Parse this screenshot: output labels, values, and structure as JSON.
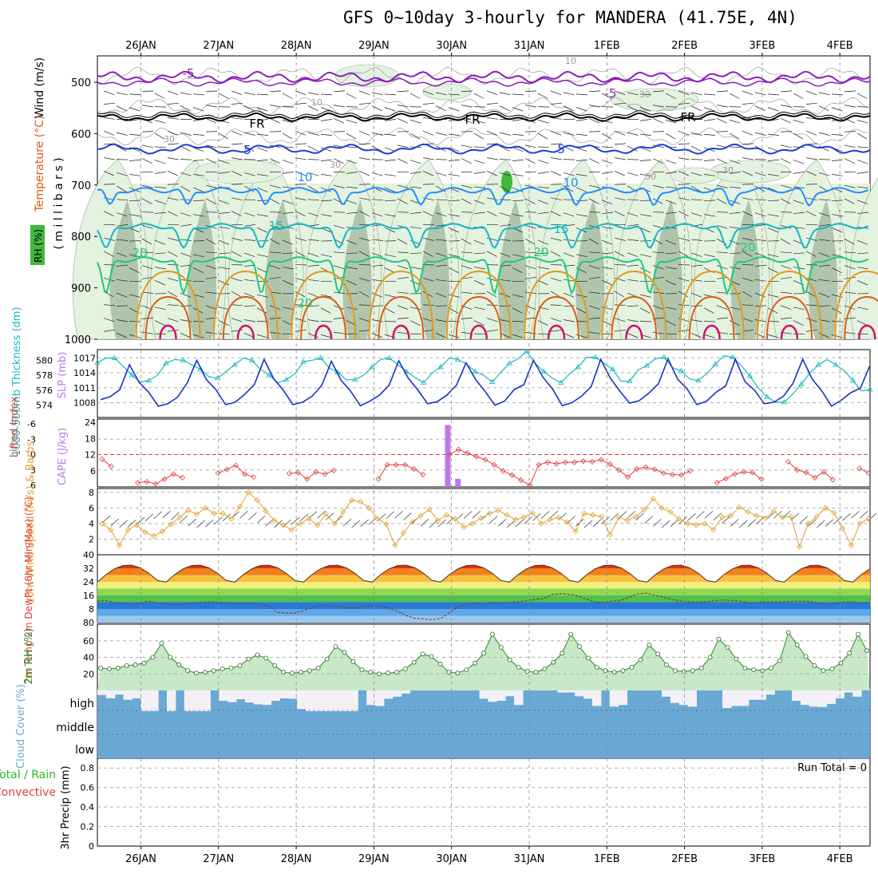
{
  "title": "GFS 0~10day 3-hourly for MANDERA (41.75E, 4N)",
  "days": [
    "26JAN",
    "27JAN",
    "28JAN",
    "29JAN",
    "30JAN",
    "31JAN",
    "1FEB",
    "2FEB",
    "3FEB",
    "4FEB"
  ],
  "colors": {
    "purple": "#8a1fb5",
    "black": "#000000",
    "blue": "#1a3fd6",
    "skyblue": "#1e90ff",
    "cyan": "#10b8c8",
    "green": "#1fc87a",
    "orange": "#e39a1e",
    "orangered": "#e05a10",
    "magenta": "#d0106a",
    "rh_light": "#e4f2e0",
    "rh_mid": "#9fb59b",
    "rh_dark": "#3fb83f",
    "slp": "#1833c8",
    "thick": "#18b8c0",
    "li": "#e04040",
    "cape": "#c078e8",
    "wind10": "#e0a030",
    "cloud": "#6aa9d4",
    "rhfill": "#c8e8c8"
  },
  "chart_data": [
    {
      "type": "contour",
      "name": "upper-air",
      "ylabel_main": "Wind (m/s)",
      "ylabel_t": "Temperature (°C)",
      "ylabel_rh": "RH (%)",
      "ylabel_p": "( m i l l i b a r s )",
      "y_ticks": [
        "500",
        "600",
        "700",
        "800",
        "900",
        "1000"
      ],
      "contour_labels": [
        {
          "text": "-5",
          "c": "purple",
          "series": "t-5"
        },
        {
          "text": "-5",
          "c": "purple",
          "series": "t-5b"
        },
        {
          "text": "FR",
          "c": "black",
          "series": "fr"
        },
        {
          "text": "FR",
          "c": "black",
          "series": "fr"
        },
        {
          "text": "FR",
          "c": "black",
          "series": "fr"
        },
        {
          "text": "5",
          "c": "blue",
          "series": "t5"
        },
        {
          "text": "5",
          "c": "blue",
          "series": "t5"
        },
        {
          "text": "10",
          "c": "skyblue",
          "series": "t10"
        },
        {
          "text": "10",
          "c": "skyblue",
          "series": "t10"
        },
        {
          "text": "15",
          "c": "cyan",
          "series": "t15"
        },
        {
          "text": "15",
          "c": "cyan",
          "series": "t15"
        },
        {
          "text": "20",
          "c": "green",
          "series": "t20"
        },
        {
          "text": "20",
          "c": "green",
          "series": "t20"
        },
        {
          "text": "20",
          "c": "green",
          "series": "t20"
        },
        {
          "text": "20",
          "c": "green",
          "series": "t20"
        },
        {
          "text": "10",
          "c": "grey",
          "series": "rh"
        },
        {
          "text": "10",
          "c": "grey",
          "series": "rh"
        },
        {
          "text": "30",
          "c": "grey",
          "series": "rh"
        },
        {
          "text": "30",
          "c": "grey",
          "series": "rh"
        },
        {
          "text": "30",
          "c": "grey",
          "series": "rh"
        },
        {
          "text": "30",
          "c": "grey",
          "series": "rh"
        },
        {
          "text": "50",
          "c": "grey",
          "series": "rh"
        }
      ]
    },
    {
      "type": "line",
      "name": "slp-thickness",
      "ylabel_left": "1000-500mb Thickness (dm)",
      "ylabel_right": "SLP (mb)",
      "left_ticks": [
        "580",
        "578",
        "576",
        "574"
      ],
      "right_ticks": [
        "1017",
        "1014",
        "1011",
        "1008"
      ],
      "left_range": [
        573,
        581
      ],
      "right_range": [
        1006,
        1018
      ],
      "slp": [
        1008.6,
        1009.2,
        1010.6,
        1015.6,
        1012.1,
        1010.1,
        1007.3,
        1007.8,
        1009.1,
        1011.9,
        1016.5,
        1012.6,
        1010.6,
        1007.6,
        1008.1,
        1009.7,
        1011.7,
        1016.7,
        1012.8,
        1010.5,
        1007.6,
        1008.1,
        1009.3,
        1011.5,
        1016.3,
        1012.5,
        1010.3,
        1007.4,
        1008.3,
        1009.5,
        1011.5,
        1016.4,
        1012.9,
        1010.5,
        1007.8,
        1008.2,
        1009.5,
        1011.5,
        1016.0,
        1012.6,
        1010.2,
        1007.5,
        1008.3,
        1010.6,
        1011.6,
        1016.5,
        1013.1,
        1010.7,
        1007.4,
        1008.0,
        1009.3,
        1011.2,
        1016.7,
        1012.9,
        1010.3,
        1007.9,
        1008.4,
        1009.9,
        1011.8,
        1016.8,
        1012.7,
        1010.7,
        1007.6,
        1008.3,
        1010.1,
        1011.4,
        1016.7,
        1012.2,
        1010.5,
        1007.8,
        1008.1,
        1009.3,
        1011.9,
        1016.7,
        1012.7,
        1010.3,
        1007.3,
        1008.5,
        1010.0,
        1010.9,
        1015.5
      ],
      "thick": [
        579.7,
        580.3,
        580.3,
        579.2,
        578.0,
        577.1,
        577.3,
        578.0,
        579.6,
        580.1,
        580.0,
        579.4,
        578.8,
        577.8,
        577.6,
        578.5,
        579.4,
        580.3,
        580.0,
        578.8,
        578.0,
        577.0,
        577.4,
        578.2,
        579.8,
        580.0,
        580.3,
        579.0,
        578.4,
        577.4,
        577.4,
        578.0,
        579.1,
        580.1,
        580.3,
        579.4,
        578.5,
        577.7,
        577.0,
        578.3,
        579.1,
        580.3,
        580.1,
        579.5,
        578.5,
        578.0,
        577.1,
        578.4,
        579.6,
        580.2,
        581.2,
        579.6,
        578.5,
        577.6,
        577.0,
        578.2,
        579.1,
        580.4,
        580.4,
        579.6,
        578.8,
        577.2,
        577.2,
        578.7,
        579.3,
        580.2,
        580.4,
        579.0,
        578.6,
        577.5,
        577.3,
        578.2,
        579.5,
        580.6,
        580.4,
        579.3,
        577.9,
        576.3,
        575.1,
        574.4,
        574.4,
        575.5,
        576.8,
        578.3,
        579.4,
        580.1,
        579.4,
        578.6,
        577.3,
        575.9,
        576.1
      ]
    },
    {
      "type": "bar",
      "name": "lifted-cape",
      "ylabel_li": "Lifted Index",
      "ylabel_cape": "CAPE (J/kg)",
      "li_ticks": [
        "-6",
        "-3",
        "0",
        "3",
        "6"
      ],
      "cape_ticks": [
        "24",
        "18",
        "12",
        "6"
      ],
      "li_range": [
        -6,
        6
      ],
      "cape_range": [
        0,
        24
      ],
      "li": [
        0.9,
        2.3,
        null,
        null,
        5.5,
        5.3,
        5.7,
        4.8,
        3.8,
        4.5,
        null,
        null,
        null,
        3.6,
        2.9,
        2.1,
        3.8,
        4.4,
        null,
        null,
        null,
        3.7,
        3.5,
        4.8,
        3.4,
        3.8,
        3.1,
        null,
        null,
        null,
        null,
        4.8,
        2.0,
        2.0,
        2.0,
        2.8,
        3.9,
        null,
        null,
        0.0,
        -1.0,
        -0.3,
        0.4,
        1.0,
        2.0,
        3.2,
        4.0,
        5.0,
        6.0,
        2.0,
        1.5,
        1.8,
        1.5,
        1.5,
        1.3,
        1.4,
        1.0,
        1.9,
        3.0,
        4.4,
        2.8,
        2.5,
        2.9,
        3.6,
        3.9,
        4.0,
        3.2,
        null,
        null,
        5.5,
        4.7,
        3.8,
        3.4,
        3.5,
        4.8,
        null,
        null,
        1.4,
        3.0,
        3.5,
        4.5,
        3.4,
        4.9,
        null,
        null,
        2.7,
        3.6
      ],
      "cape_bars": [
        {
          "day": 4.12,
          "v": 23
        },
        {
          "day": 4.25,
          "v": 3
        }
      ]
    },
    {
      "type": "line",
      "name": "wind10m",
      "ylabel": "10m Wind Speed (m/s) & Barbs",
      "ticks": [
        "8",
        "6",
        "4",
        "2"
      ],
      "range": [
        0,
        8.5
      ],
      "speed": [
        4.0,
        3.2,
        1.2,
        3.2,
        3.8,
        2.9,
        2.4,
        3.0,
        3.9,
        4.8,
        5.7,
        5.2,
        6.0,
        5.3,
        5.3,
        4.6,
        6.2,
        8.0,
        7.0,
        5.6,
        4.4,
        3.8,
        3.2,
        4.0,
        4.6,
        3.8,
        5.2,
        4.0,
        5.5,
        7.0,
        6.8,
        6.0,
        4.6,
        3.9,
        1.2,
        2.8,
        4.2,
        5.0,
        5.8,
        4.4,
        5.1,
        4.6,
        3.5,
        4.0,
        4.7,
        5.3,
        5.7,
        5.1,
        4.5,
        4.8,
        5.4,
        4.0,
        4.5,
        4.8,
        4.2,
        3.0,
        5.3,
        5.1,
        4.9,
        2.6,
        4.8,
        4.4,
        4.9,
        5.8,
        7.2,
        6.0,
        5.5,
        4.6,
        4.0,
        3.8,
        4.0,
        3.2,
        4.8,
        5.0,
        6.1,
        5.5,
        5.0,
        4.7,
        5.6,
        4.8,
        4.9,
        1.0,
        4.0,
        4.9,
        6.0,
        5.4,
        3.4,
        1.2,
        4.0,
        4.6
      ]
    },
    {
      "type": "area",
      "name": "temp2m",
      "ylabel": "2m Temp 2m DewPt (6hr Min/Max) (°C)",
      "ticks": [
        "40",
        "32",
        "24",
        "16",
        "8",
        "80"
      ],
      "range": [
        0,
        40
      ],
      "temp_min": 22,
      "temp_max": 34,
      "dew": [
        12.6,
        13.0,
        11.7,
        11.2,
        10.8,
        11.5,
        12.6,
        11.6,
        11.4,
        10.5,
        11.1,
        11.6,
        11.8,
        12.1,
        12.0,
        11.6,
        11.4,
        11.5,
        11.3,
        10.8,
        9.7,
        6.0,
        5.6,
        5.6,
        7.0,
        9.0,
        10.3,
        9.7,
        9.4,
        8.7,
        8.5,
        9.8,
        9.9,
        9.7,
        8.2,
        6.7,
        4.1,
        2.5,
        2.2,
        1.7,
        2.5,
        5.7,
        9.2,
        10.8,
        11.2,
        10.9,
        11.9,
        11.7,
        11.9,
        12.3,
        12.9,
        13.8,
        14.1,
        16.5,
        17.0,
        16.6,
        15.7,
        13.7,
        12.1,
        11.8,
        12.6,
        13.1,
        15.1,
        17.0,
        17.3,
        16.0,
        15.0,
        13.5,
        12.6,
        12.1,
        12.0,
        12.3,
        12.9,
        13.3,
        12.9,
        12.6,
        11.5,
        12.0,
        12.2,
        12.2,
        12.1,
        12.5,
        12.6,
        12.3,
        11.4,
        10.8,
        11.3,
        12.0,
        12.1,
        11.6,
        11.6
      ]
    },
    {
      "type": "area",
      "name": "rh2m",
      "ylabel": "2m RH (%)",
      "ticks": [
        "60",
        "40",
        "20"
      ],
      "range": [
        0,
        80
      ],
      "rh": [
        27,
        26,
        27,
        30,
        31,
        33,
        40,
        57,
        40,
        31,
        24,
        21,
        22,
        24,
        26,
        27,
        30,
        38,
        43,
        39,
        30,
        22,
        21,
        22,
        24,
        27,
        38,
        53,
        46,
        35,
        25,
        22,
        20,
        21,
        22,
        26,
        34,
        44,
        41,
        32,
        22,
        21,
        25,
        33,
        45,
        68,
        52,
        37,
        28,
        23,
        22,
        26,
        34,
        45,
        68,
        53,
        39,
        28,
        24,
        22,
        24,
        28,
        37,
        55,
        44,
        31,
        24,
        23,
        24,
        27,
        40,
        62,
        52,
        38,
        27,
        25,
        24,
        27,
        36,
        70,
        55,
        41,
        30,
        24,
        26,
        33,
        45,
        68,
        48
      ]
    },
    {
      "type": "area",
      "name": "cloud",
      "ylabel": "Cloud Cover (%)",
      "levels": [
        "high",
        "middle",
        "low"
      ],
      "high": [
        78,
        62,
        80,
        55,
        62,
        0,
        0,
        100,
        0,
        100,
        0,
        0,
        0,
        100,
        50,
        44,
        58,
        42,
        33,
        30,
        50,
        62,
        60,
        10,
        0,
        0,
        0,
        0,
        0,
        0,
        100,
        30,
        25,
        60,
        70,
        85,
        100,
        100,
        100,
        100,
        100,
        100,
        100,
        100,
        60,
        45,
        50,
        72,
        30,
        100,
        100,
        100,
        100,
        90,
        90,
        72,
        60,
        25,
        100,
        22,
        30,
        100,
        100,
        100,
        100,
        70,
        40,
        30,
        22,
        100,
        100,
        100,
        15,
        25,
        25,
        55,
        55,
        80,
        100,
        100,
        50,
        30,
        22,
        20,
        35,
        62,
        90,
        70,
        100
      ]
    },
    {
      "type": "bar",
      "name": "precip",
      "ylabel_main": "3hr Precip (mm)",
      "ylabel_total": "Total / Rain",
      "ylabel_conv": "Convective",
      "ticks": [
        "0.8",
        "0.6",
        "0.4",
        "0.2",
        "0"
      ],
      "range": [
        0,
        0.9
      ],
      "run_total": "Run Total = 0"
    }
  ]
}
